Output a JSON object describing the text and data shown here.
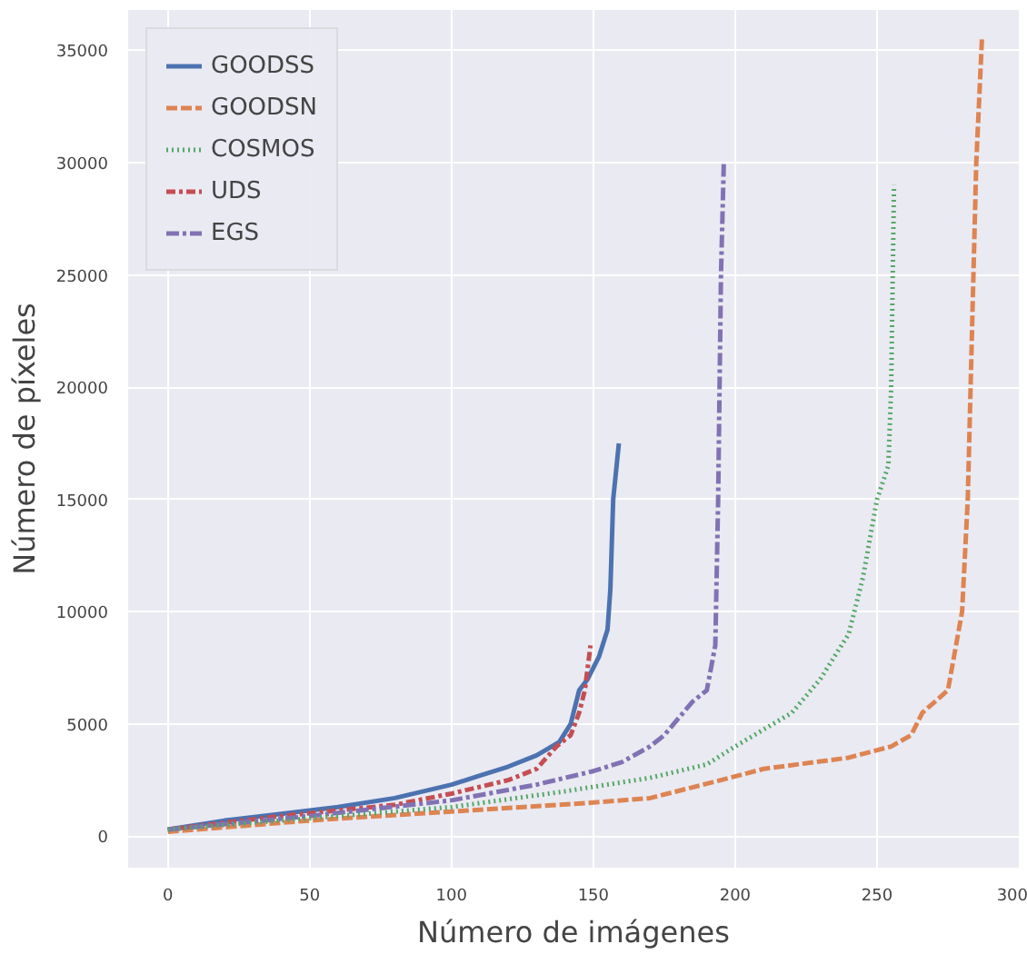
{
  "chart_data": {
    "type": "line",
    "xlabel": "Número de imágenes",
    "ylabel": "Número de píxeles",
    "xlim": [
      -14,
      300
    ],
    "ylim": [
      -1400,
      36800
    ],
    "xticks": [
      0,
      50,
      100,
      150,
      200,
      250,
      300
    ],
    "yticks": [
      0,
      5000,
      10000,
      15000,
      20000,
      25000,
      30000,
      35000
    ],
    "grid": true,
    "legend": "top left",
    "series": [
      {
        "name": "GOODSS",
        "color": "#4c72b0",
        "line_style": "solid",
        "x": [
          0,
          20,
          40,
          60,
          80,
          100,
          110,
          120,
          130,
          138,
          142,
          145,
          148,
          152,
          155,
          156,
          157,
          159
        ],
        "values": [
          300,
          700,
          1000,
          1300,
          1700,
          2300,
          2700,
          3100,
          3600,
          4200,
          5000,
          6500,
          7000,
          8000,
          9200,
          11000,
          15000,
          17500
        ]
      },
      {
        "name": "GOODSN",
        "color": "#dd8452",
        "line_style": "dashed",
        "x": [
          0,
          50,
          100,
          150,
          170,
          195,
          210,
          240,
          255,
          262,
          266,
          275,
          280,
          282,
          283,
          285,
          287
        ],
        "values": [
          200,
          700,
          1100,
          1500,
          1700,
          2500,
          3000,
          3500,
          4000,
          4500,
          5500,
          6500,
          10000,
          15000,
          20000,
          30000,
          35500
        ]
      },
      {
        "name": "COSMOS",
        "color": "#55a868",
        "line_style": "dotted",
        "x": [
          0,
          50,
          100,
          140,
          170,
          190,
          200,
          220,
          230,
          240,
          245,
          250,
          254,
          255,
          256
        ],
        "values": [
          300,
          800,
          1300,
          2000,
          2600,
          3200,
          4000,
          5500,
          7000,
          9000,
          11500,
          15000,
          16500,
          20000,
          29000
        ]
      },
      {
        "name": "UDS",
        "color": "#c44e52",
        "line_style": "dashdot",
        "x": [
          0,
          40,
          80,
          100,
          120,
          130,
          137,
          142,
          145,
          147,
          149
        ],
        "values": [
          300,
          900,
          1400,
          1900,
          2500,
          3000,
          4000,
          4500,
          5500,
          6500,
          8500
        ]
      },
      {
        "name": "EGS",
        "color": "#8172b3",
        "line_style": "dashdotdot",
        "x": [
          0,
          50,
          100,
          130,
          150,
          160,
          170,
          175,
          185,
          190,
          193,
          194,
          195,
          196
        ],
        "values": [
          300,
          900,
          1600,
          2300,
          2900,
          3300,
          4000,
          4500,
          6000,
          6500,
          8500,
          15000,
          25000,
          30000
        ]
      }
    ]
  }
}
